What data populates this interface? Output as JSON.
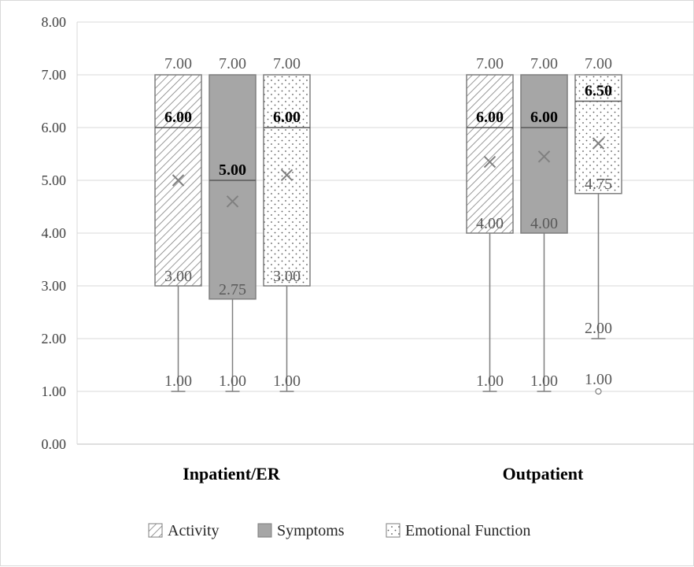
{
  "chart_data": {
    "type": "boxplot",
    "ylim": [
      0,
      8
    ],
    "y_ticks": [
      "0.00",
      "1.00",
      "2.00",
      "3.00",
      "4.00",
      "5.00",
      "6.00",
      "7.00",
      "8.00"
    ],
    "grid": true,
    "legend_position": "bottom",
    "categories": [
      "Inpatient/ER",
      "Outpatient"
    ],
    "series": [
      {
        "name": "Activity",
        "pattern": "diagonal-hatch",
        "color": "#595959",
        "boxes": [
          {
            "min": 1.0,
            "q1": 3.0,
            "median": 6.0,
            "q3": 7.0,
            "max": 7.0,
            "mean": 5.0,
            "labels": {
              "max": "7.00",
              "median": "6.00",
              "q1": "3.00",
              "min": "1.00"
            }
          },
          {
            "min": 1.0,
            "q1": 4.0,
            "median": 6.0,
            "q3": 7.0,
            "max": 7.0,
            "mean": 5.35,
            "labels": {
              "max": "7.00",
              "median": "6.00",
              "q1": "4.00",
              "min": "1.00"
            }
          }
        ]
      },
      {
        "name": "Symptoms",
        "pattern": "solid",
        "color": "#a6a6a6",
        "boxes": [
          {
            "min": 1.0,
            "q1": 2.75,
            "median": 5.0,
            "q3": 7.0,
            "max": 7.0,
            "mean": 4.6,
            "labels": {
              "max": "7.00",
              "median": "5.00",
              "q1": "2.75",
              "min": "1.00"
            }
          },
          {
            "min": 1.0,
            "q1": 4.0,
            "median": 6.0,
            "q3": 7.0,
            "max": 7.0,
            "mean": 5.45,
            "labels": {
              "max": "7.00",
              "median": "6.00",
              "q1": "4.00",
              "min": "1.00"
            }
          }
        ]
      },
      {
        "name": "Emotional Function",
        "pattern": "dots",
        "color": "#ffffff",
        "boxes": [
          {
            "min": 1.0,
            "q1": 3.0,
            "median": 6.0,
            "q3": 7.0,
            "max": 7.0,
            "mean": 5.1,
            "labels": {
              "max": "7.00",
              "median": "6.00",
              "q1": "3.00",
              "min": "1.00"
            }
          },
          {
            "min": 2.0,
            "q1": 4.75,
            "median": 6.5,
            "q3": 7.0,
            "max": 7.0,
            "mean": 5.7,
            "outliers": [
              1.0
            ],
            "labels": {
              "max": "7.00",
              "median": "6.50",
              "q1": "4.75",
              "min": "2.00",
              "outlier": "1.00"
            }
          }
        ]
      }
    ]
  }
}
